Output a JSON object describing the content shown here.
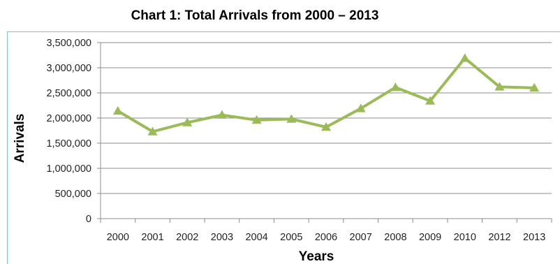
{
  "chart_data": {
    "type": "line",
    "title": "Chart 1: Total Arrivals from 2000 – 2013",
    "xlabel": "Years",
    "ylabel": "Arrivals",
    "categories": [
      "2000",
      "2001",
      "2002",
      "2003",
      "2004",
      "2005",
      "2006",
      "2007",
      "2008",
      "2009",
      "2010",
      "2012",
      "2013"
    ],
    "series": [
      {
        "values": [
          2140000,
          1730000,
          1910000,
          2060000,
          1960000,
          1980000,
          1820000,
          2190000,
          2610000,
          2340000,
          3190000,
          2620000,
          2600000
        ]
      }
    ],
    "yticks": [
      "0",
      "500,000",
      "1,000,000",
      "1,500,000",
      "2,000,000",
      "2,500,000",
      "3,000,000",
      "3,500,000"
    ],
    "ylim": [
      0,
      3500000
    ],
    "grid": "horizontal",
    "legend": "none",
    "line_color": "#9bbb59",
    "frame_color": "#7ec4e8"
  }
}
